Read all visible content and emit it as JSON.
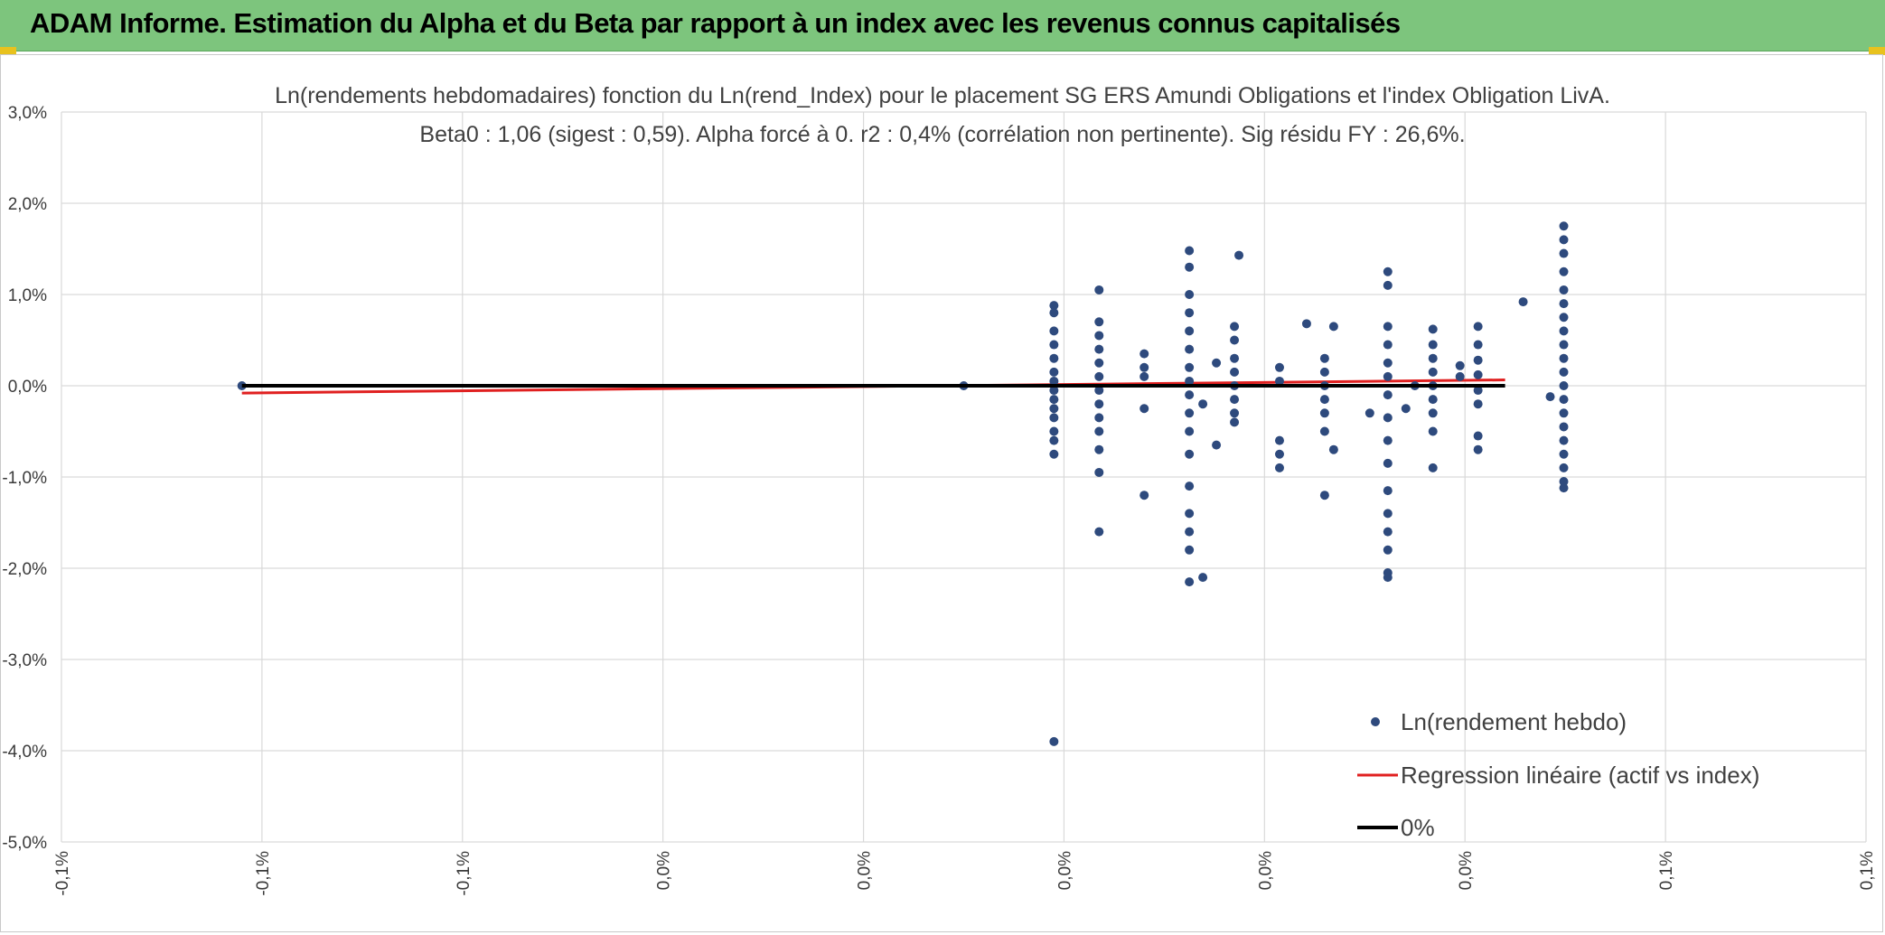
{
  "banner": {
    "title": "ADAM Informe. Estimation du Alpha et du Beta par rapport à un index avec les revenus connus capitalisés"
  },
  "colors": {
    "banner_bg": "#7dc57d",
    "points": "#2e4a7d",
    "regression": "#e02020",
    "zero_line": "#000000",
    "grid": "#d9d9d9"
  },
  "chart_data": {
    "type": "scatter",
    "title_line1": "Ln(rendements hebdomadaires) fonction du Ln(rend_Index) pour le placement SG ERS Amundi Obligations et l'index Obligation LivA.",
    "title_line2": "Beta0 : 1,06 (sigest : 0,59). Alpha forcé à 0. r2 : 0,4% (corrélation non pertinente). Sig résidu FY : 26,6%.",
    "y_ticks": [
      "3,0%",
      "2,0%",
      "1,0%",
      "0,0%",
      "-1,0%",
      "-2,0%",
      "-3,0%",
      "-4,0%",
      "-5,0%"
    ],
    "x_ticks": [
      "-0,1%",
      "-0,1%",
      "-0,1%",
      "0,0%",
      "0,0%",
      "0,0%",
      "0,0%",
      "0,0%",
      "0,1%",
      "0,1%"
    ],
    "xlim": [
      -0.1,
      0.1
    ],
    "ylim": [
      -5.0,
      3.0
    ],
    "grid": true,
    "legend_position": "bottom-right",
    "legend": {
      "scatter": "Ln(rendement hebdo)",
      "regression": "Regression linéaire (actif vs index)",
      "zero": "0%"
    },
    "regression_line": {
      "x": [
        -0.08,
        0.06
      ],
      "y": [
        -0.08,
        0.064
      ]
    },
    "zero_line": {
      "x": [
        -0.08,
        0.06
      ],
      "y": [
        0,
        0
      ]
    },
    "series": [
      {
        "name": "Ln(rendement hebdo)",
        "points": [
          [
            -0.08,
            0.0
          ],
          [
            0.0,
            0.0
          ],
          [
            0.01,
            0.88
          ],
          [
            0.01,
            0.8
          ],
          [
            0.01,
            0.6
          ],
          [
            0.01,
            0.45
          ],
          [
            0.01,
            0.3
          ],
          [
            0.01,
            0.15
          ],
          [
            0.01,
            0.05
          ],
          [
            0.01,
            -0.05
          ],
          [
            0.01,
            -0.15
          ],
          [
            0.01,
            -0.25
          ],
          [
            0.01,
            -0.35
          ],
          [
            0.01,
            -0.5
          ],
          [
            0.01,
            -0.6
          ],
          [
            0.01,
            -0.75
          ],
          [
            0.01,
            -3.9
          ],
          [
            0.015,
            1.05
          ],
          [
            0.015,
            0.7
          ],
          [
            0.015,
            0.55
          ],
          [
            0.015,
            0.4
          ],
          [
            0.015,
            0.25
          ],
          [
            0.015,
            0.1
          ],
          [
            0.015,
            -0.05
          ],
          [
            0.015,
            -0.2
          ],
          [
            0.015,
            -0.35
          ],
          [
            0.015,
            -0.5
          ],
          [
            0.015,
            -0.7
          ],
          [
            0.015,
            -0.95
          ],
          [
            0.015,
            -1.6
          ],
          [
            0.02,
            0.35
          ],
          [
            0.02,
            0.2
          ],
          [
            0.02,
            0.1
          ],
          [
            0.02,
            -0.25
          ],
          [
            0.02,
            -1.2
          ],
          [
            0.025,
            1.48
          ],
          [
            0.025,
            1.3
          ],
          [
            0.025,
            1.0
          ],
          [
            0.025,
            0.8
          ],
          [
            0.025,
            0.6
          ],
          [
            0.025,
            0.4
          ],
          [
            0.025,
            0.2
          ],
          [
            0.025,
            0.05
          ],
          [
            0.025,
            -0.1
          ],
          [
            0.025,
            -0.3
          ],
          [
            0.025,
            -0.5
          ],
          [
            0.025,
            -0.75
          ],
          [
            0.025,
            -1.1
          ],
          [
            0.025,
            -1.4
          ],
          [
            0.025,
            -1.6
          ],
          [
            0.025,
            -1.8
          ],
          [
            0.025,
            -2.15
          ],
          [
            0.0265,
            -2.1
          ],
          [
            0.0265,
            -0.2
          ],
          [
            0.028,
            0.25
          ],
          [
            0.028,
            -0.65
          ],
          [
            0.03,
            0.65
          ],
          [
            0.03,
            0.5
          ],
          [
            0.03,
            0.3
          ],
          [
            0.03,
            0.15
          ],
          [
            0.03,
            0.0
          ],
          [
            0.03,
            -0.15
          ],
          [
            0.03,
            -0.3
          ],
          [
            0.03,
            -0.4
          ],
          [
            0.0305,
            1.43
          ],
          [
            0.035,
            0.2
          ],
          [
            0.035,
            0.05
          ],
          [
            0.035,
            -0.6
          ],
          [
            0.035,
            -0.75
          ],
          [
            0.035,
            -0.9
          ],
          [
            0.038,
            0.68
          ],
          [
            0.04,
            0.3
          ],
          [
            0.04,
            0.15
          ],
          [
            0.04,
            0.0
          ],
          [
            0.04,
            -0.15
          ],
          [
            0.04,
            -0.3
          ],
          [
            0.04,
            -0.5
          ],
          [
            0.04,
            -1.2
          ],
          [
            0.041,
            0.65
          ],
          [
            0.041,
            -0.7
          ],
          [
            0.045,
            -0.3
          ],
          [
            0.047,
            1.25
          ],
          [
            0.047,
            1.1
          ],
          [
            0.047,
            0.65
          ],
          [
            0.047,
            0.45
          ],
          [
            0.047,
            0.25
          ],
          [
            0.047,
            0.1
          ],
          [
            0.047,
            -0.1
          ],
          [
            0.047,
            -0.35
          ],
          [
            0.047,
            -0.6
          ],
          [
            0.047,
            -0.85
          ],
          [
            0.047,
            -1.15
          ],
          [
            0.047,
            -1.4
          ],
          [
            0.047,
            -1.6
          ],
          [
            0.047,
            -1.8
          ],
          [
            0.047,
            -2.05
          ],
          [
            0.047,
            -2.1
          ],
          [
            0.049,
            -0.25
          ],
          [
            0.05,
            0.0
          ],
          [
            0.052,
            0.62
          ],
          [
            0.052,
            0.45
          ],
          [
            0.052,
            0.3
          ],
          [
            0.052,
            0.15
          ],
          [
            0.052,
            0.0
          ],
          [
            0.052,
            -0.15
          ],
          [
            0.052,
            -0.3
          ],
          [
            0.052,
            -0.5
          ],
          [
            0.052,
            -0.9
          ],
          [
            0.055,
            0.22
          ],
          [
            0.055,
            0.1
          ],
          [
            0.057,
            0.65
          ],
          [
            0.057,
            0.45
          ],
          [
            0.057,
            0.28
          ],
          [
            0.057,
            0.12
          ],
          [
            0.057,
            -0.05
          ],
          [
            0.057,
            -0.2
          ],
          [
            0.057,
            -0.55
          ],
          [
            0.057,
            -0.7
          ],
          [
            0.062,
            0.92
          ],
          [
            0.065,
            -0.12
          ],
          [
            0.0665,
            1.75
          ],
          [
            0.0665,
            1.6
          ],
          [
            0.0665,
            1.45
          ],
          [
            0.0665,
            1.25
          ],
          [
            0.0665,
            1.05
          ],
          [
            0.0665,
            0.9
          ],
          [
            0.0665,
            0.75
          ],
          [
            0.0665,
            0.6
          ],
          [
            0.0665,
            0.45
          ],
          [
            0.0665,
            0.3
          ],
          [
            0.0665,
            0.15
          ],
          [
            0.0665,
            0.0
          ],
          [
            0.0665,
            -0.15
          ],
          [
            0.0665,
            -0.3
          ],
          [
            0.0665,
            -0.45
          ],
          [
            0.0665,
            -0.6
          ],
          [
            0.0665,
            -0.75
          ],
          [
            0.0665,
            -0.9
          ],
          [
            0.0665,
            -1.05
          ],
          [
            0.0665,
            -1.12
          ]
        ]
      }
    ]
  }
}
